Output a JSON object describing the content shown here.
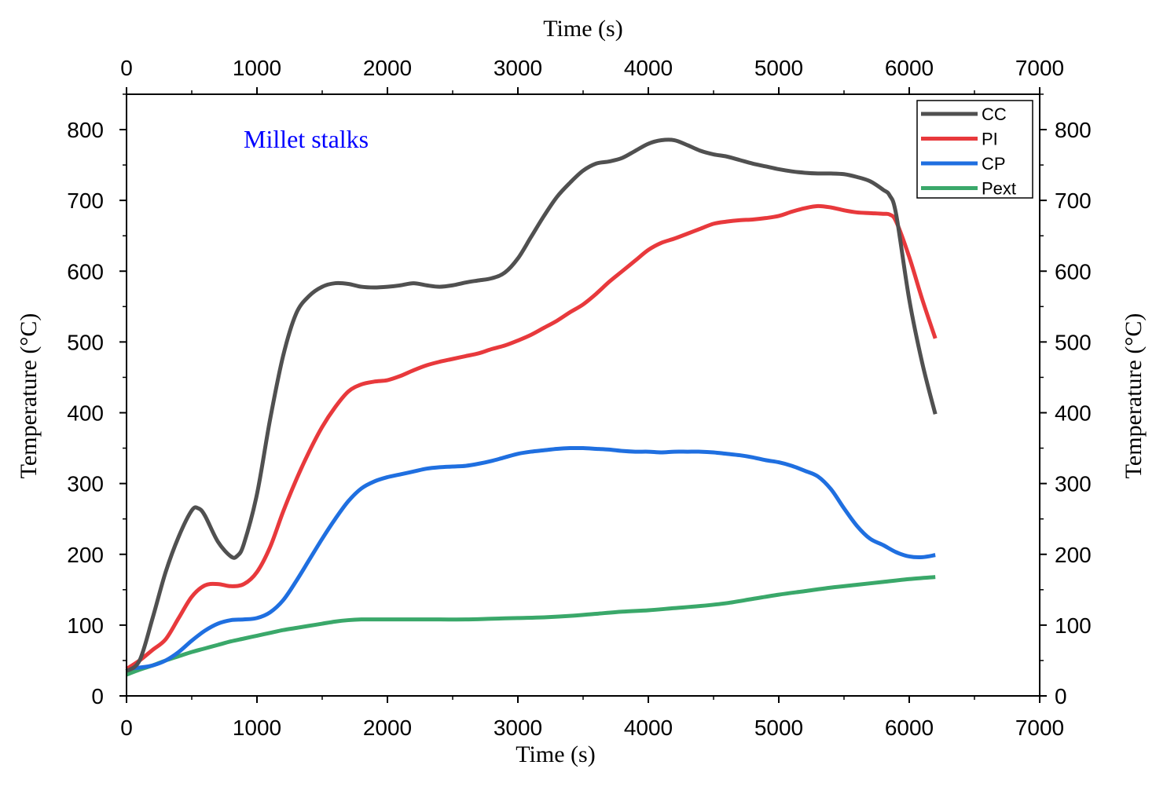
{
  "chart_data": {
    "type": "line",
    "annotation": "Millet stalks",
    "xlabel_bottom": "Time (s)",
    "xlabel_top": "Time (s)",
    "ylabel_left": "Temperature (°C)",
    "ylabel_right": "Temperature (°C)",
    "xlim": [
      0,
      7000
    ],
    "ylim": [
      0,
      850
    ],
    "x_ticks": [
      0,
      1000,
      2000,
      3000,
      4000,
      5000,
      6000,
      7000
    ],
    "x_tick_labels": [
      "0",
      "1000",
      "2000",
      "3000",
      "4000",
      "5000",
      "6000",
      "7000"
    ],
    "y_ticks": [
      0,
      100,
      200,
      300,
      400,
      500,
      600,
      700,
      800
    ],
    "y_tick_labels": [
      "0",
      "100",
      "200",
      "300",
      "400",
      "500",
      "600",
      "700",
      "800"
    ],
    "grid": false,
    "legend_position": "top-right",
    "colors": {
      "annotation": "#0000ff",
      "CC": "#505050",
      "PI": "#e8393c",
      "CP": "#1f6fe0",
      "Pext": "#3aa86a"
    },
    "series": [
      {
        "name": "CC",
        "x": [
          0,
          100,
          200,
          300,
          400,
          500,
          550,
          600,
          700,
          800,
          850,
          900,
          1000,
          1100,
          1200,
          1300,
          1400,
          1500,
          1600,
          1700,
          1800,
          1900,
          2000,
          2100,
          2200,
          2300,
          2400,
          2500,
          2600,
          2700,
          2800,
          2900,
          3000,
          3100,
          3200,
          3300,
          3400,
          3500,
          3600,
          3700,
          3800,
          3900,
          4000,
          4100,
          4200,
          4300,
          4400,
          4500,
          4600,
          4700,
          4800,
          4900,
          5000,
          5100,
          5200,
          5300,
          5400,
          5500,
          5600,
          5700,
          5800,
          5850,
          5900,
          6000,
          6100,
          6200
        ],
        "values": [
          35,
          50,
          110,
          175,
          225,
          262,
          265,
          255,
          218,
          197,
          198,
          215,
          285,
          390,
          480,
          540,
          565,
          578,
          583,
          582,
          578,
          577,
          578,
          580,
          583,
          580,
          578,
          580,
          584,
          587,
          590,
          598,
          618,
          648,
          678,
          705,
          725,
          742,
          752,
          755,
          760,
          770,
          780,
          785,
          785,
          778,
          770,
          765,
          762,
          757,
          752,
          748,
          744,
          741,
          739,
          738,
          738,
          737,
          733,
          727,
          715,
          707,
          680,
          560,
          470,
          398
        ]
      },
      {
        "name": "PI",
        "x": [
          0,
          100,
          200,
          300,
          400,
          500,
          600,
          700,
          800,
          900,
          1000,
          1100,
          1200,
          1300,
          1400,
          1500,
          1600,
          1700,
          1800,
          1900,
          2000,
          2100,
          2200,
          2300,
          2400,
          2500,
          2600,
          2700,
          2800,
          2900,
          3000,
          3100,
          3200,
          3300,
          3400,
          3500,
          3600,
          3700,
          3800,
          3900,
          4000,
          4100,
          4200,
          4300,
          4400,
          4500,
          4600,
          4700,
          4800,
          4900,
          5000,
          5100,
          5200,
          5300,
          5400,
          5500,
          5600,
          5700,
          5800,
          5850,
          5900,
          6000,
          6100,
          6200
        ],
        "values": [
          38,
          50,
          65,
          80,
          110,
          140,
          156,
          158,
          155,
          158,
          175,
          210,
          260,
          305,
          345,
          380,
          408,
          430,
          440,
          444,
          446,
          452,
          460,
          467,
          472,
          476,
          480,
          484,
          490,
          495,
          502,
          510,
          520,
          530,
          542,
          553,
          568,
          585,
          600,
          615,
          630,
          640,
          646,
          653,
          660,
          667,
          670,
          672,
          673,
          675,
          678,
          684,
          689,
          692,
          690,
          686,
          683,
          682,
          681,
          680,
          670,
          620,
          560,
          505
        ]
      },
      {
        "name": "CP",
        "x": [
          0,
          100,
          200,
          300,
          400,
          500,
          600,
          700,
          800,
          900,
          1000,
          1100,
          1200,
          1300,
          1400,
          1500,
          1600,
          1700,
          1800,
          1900,
          2000,
          2100,
          2200,
          2300,
          2400,
          2500,
          2600,
          2700,
          2800,
          2900,
          3000,
          3100,
          3200,
          3300,
          3400,
          3500,
          3600,
          3700,
          3800,
          3900,
          4000,
          4100,
          4200,
          4300,
          4400,
          4500,
          4600,
          4700,
          4800,
          4900,
          5000,
          5100,
          5200,
          5300,
          5400,
          5500,
          5600,
          5700,
          5800,
          5900,
          6000,
          6100,
          6200
        ],
        "values": [
          38,
          40,
          43,
          50,
          62,
          78,
          92,
          102,
          107,
          108,
          110,
          118,
          135,
          162,
          192,
          222,
          250,
          275,
          293,
          303,
          309,
          313,
          317,
          321,
          323,
          324,
          325,
          328,
          332,
          337,
          342,
          345,
          347,
          349,
          350,
          350,
          349,
          348,
          346,
          345,
          345,
          344,
          345,
          345,
          345,
          344,
          342,
          340,
          337,
          333,
          330,
          325,
          318,
          310,
          292,
          265,
          240,
          222,
          213,
          203,
          197,
          196,
          199
        ]
      },
      {
        "name": "Pext",
        "x": [
          0,
          100,
          200,
          300,
          400,
          500,
          600,
          700,
          800,
          900,
          1000,
          1100,
          1200,
          1300,
          1400,
          1500,
          1600,
          1700,
          1800,
          1900,
          2000,
          2200,
          2400,
          2600,
          2800,
          3000,
          3200,
          3400,
          3600,
          3800,
          4000,
          4200,
          4400,
          4600,
          4800,
          5000,
          5200,
          5400,
          5600,
          5800,
          6000,
          6200
        ],
        "values": [
          30,
          37,
          43,
          50,
          56,
          62,
          67,
          72,
          77,
          81,
          85,
          89,
          93,
          96,
          99,
          102,
          105,
          107,
          108,
          108,
          108,
          108,
          108,
          108,
          109,
          110,
          111,
          113,
          116,
          119,
          121,
          124,
          127,
          131,
          137,
          143,
          148,
          153,
          157,
          161,
          165,
          168
        ]
      }
    ]
  }
}
